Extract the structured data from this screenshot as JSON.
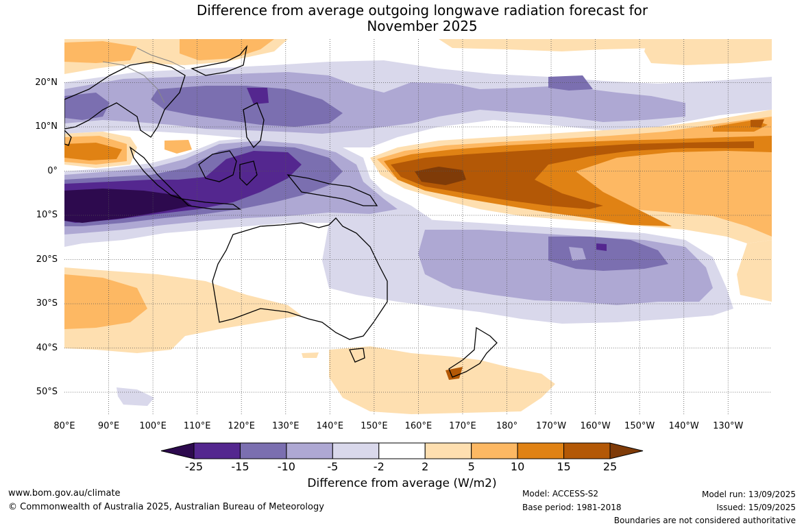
{
  "title_line1": "Difference from average outgoing longwave radiation forecast for",
  "title_line2": "November 2025",
  "lat_labels": [
    "20°N",
    "10°N",
    "0°",
    "10°S",
    "20°S",
    "30°S",
    "40°S",
    "50°S"
  ],
  "lon_labels": [
    "80°E",
    "90°E",
    "100°E",
    "110°E",
    "120°E",
    "130°E",
    "140°E",
    "150°E",
    "160°E",
    "170°E",
    "180°",
    "170°W",
    "160°W",
    "150°W",
    "140°W",
    "130°W"
  ],
  "colorbar": {
    "ticks": [
      "-25",
      "-15",
      "-10",
      "-5",
      "-2",
      "2",
      "5",
      "10",
      "15",
      "25"
    ],
    "colors": [
      "#2d0a4e",
      "#54278f",
      "#7b6fb0",
      "#aea8d3",
      "#d9d8eb",
      "#ffffff",
      "#fedfb0",
      "#fdb863",
      "#e08214",
      "#b35806",
      "#7f3b08"
    ],
    "label": "Difference from average (W/m2)"
  },
  "footer": {
    "website": "www.bom.gov.au/climate",
    "copyright": "© Commonwealth of Australia 2025, Australian Bureau of Meteorology",
    "model": "Model: ACCESS-S2",
    "base_period": "Base period: 1981-2018",
    "model_run": "Model run: 13/09/2025",
    "issued": "Issued: 15/09/2025",
    "disclaimer": "Boundaries are not considered authoritative"
  }
}
